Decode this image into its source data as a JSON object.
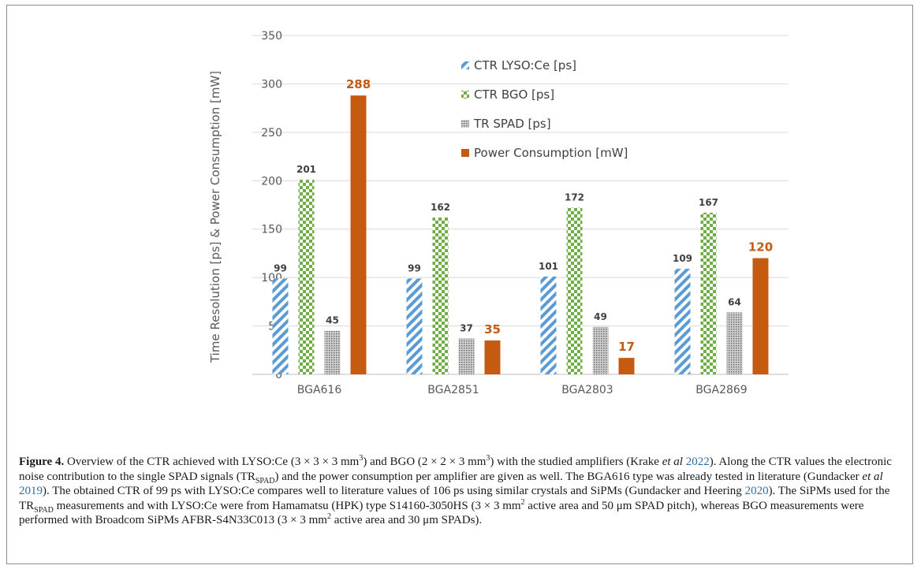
{
  "chart_data": {
    "type": "bar",
    "ylabel": "Time Resolution [ps] & Power Consumption [mW]",
    "ylim": [
      0,
      350
    ],
    "yticks": [
      0,
      50,
      100,
      150,
      200,
      250,
      300,
      350
    ],
    "grid": true,
    "legend_position": "top-right",
    "categories": [
      "BGA616",
      "BGA2851",
      "BGA2803",
      "BGA2869"
    ],
    "series": [
      {
        "name": "CTR LYSO:Ce [ps]",
        "values": [
          99,
          99,
          101,
          109
        ],
        "color": "#5b9bd5",
        "pattern": "diagonal-stripes"
      },
      {
        "name": "CTR BGO [ps]",
        "values": [
          201,
          162,
          172,
          167
        ],
        "color": "#70ad47",
        "pattern": "checkerboard"
      },
      {
        "name": "TR SPAD [ps]",
        "values": [
          45,
          37,
          49,
          64
        ],
        "color": "#808080",
        "pattern": "dots"
      },
      {
        "name": "Power Consumption [mW]",
        "values": [
          288,
          35,
          17,
          120
        ],
        "color": "#c55a11",
        "pattern": "solid"
      }
    ],
    "data_labels": [
      [
        "99",
        "201",
        "45",
        "288"
      ],
      [
        "99",
        "162",
        "37",
        "35"
      ],
      [
        "101",
        "172",
        "49",
        "17"
      ],
      [
        "109",
        "167",
        "64",
        "120"
      ]
    ]
  },
  "caption": {
    "label": "Figure 4.",
    "segments": [
      {
        "t": " Overview of the CTR achieved with LYSO:Ce (3 × 3 × 3 mm"
      },
      {
        "t": "3",
        "sup": true
      },
      {
        "t": ") and BGO (2 × 2 × 3 mm"
      },
      {
        "t": "3",
        "sup": true
      },
      {
        "t": ") with the studied amplifiers ("
      },
      {
        "t": "Krake "
      },
      {
        "t": "et al",
        "i": true
      },
      {
        "t": " 2022",
        "cite": true
      },
      {
        "t": "). Along the CTR values the electronic noise contribution to the single SPAD signals (TR"
      },
      {
        "t": "SPAD",
        "sub": true
      },
      {
        "t": ") and the power consumption per amplifier are given as well. The BGA616 type was already tested in literature (Gundacker "
      },
      {
        "t": "et al",
        "i": true
      },
      {
        "t": " 2019",
        "cite": true
      },
      {
        "t": "). The obtained CTR of 99 ps with LYSO:Ce compares well to literature values of 106 ps using similar crystals and SiPMs (Gundacker and Heering "
      },
      {
        "t": "2020",
        "cite": true
      },
      {
        "t": "). The SiPMs used for the TR"
      },
      {
        "t": "SPAD",
        "sub": true
      },
      {
        "t": " measurements and with LYSO:Ce were from Hamamatsu (HPK) type S14160-3050HS (3 × 3 mm"
      },
      {
        "t": "2",
        "sup": true
      },
      {
        "t": " active area and 50 μm SPAD pitch), whereas BGO measurements were performed with Broadcom SiPMs AFBR-S4N33C013 (3 × 3 mm"
      },
      {
        "t": "2",
        "sup": true
      },
      {
        "t": " active area and 30 μm SPADs)."
      }
    ]
  }
}
